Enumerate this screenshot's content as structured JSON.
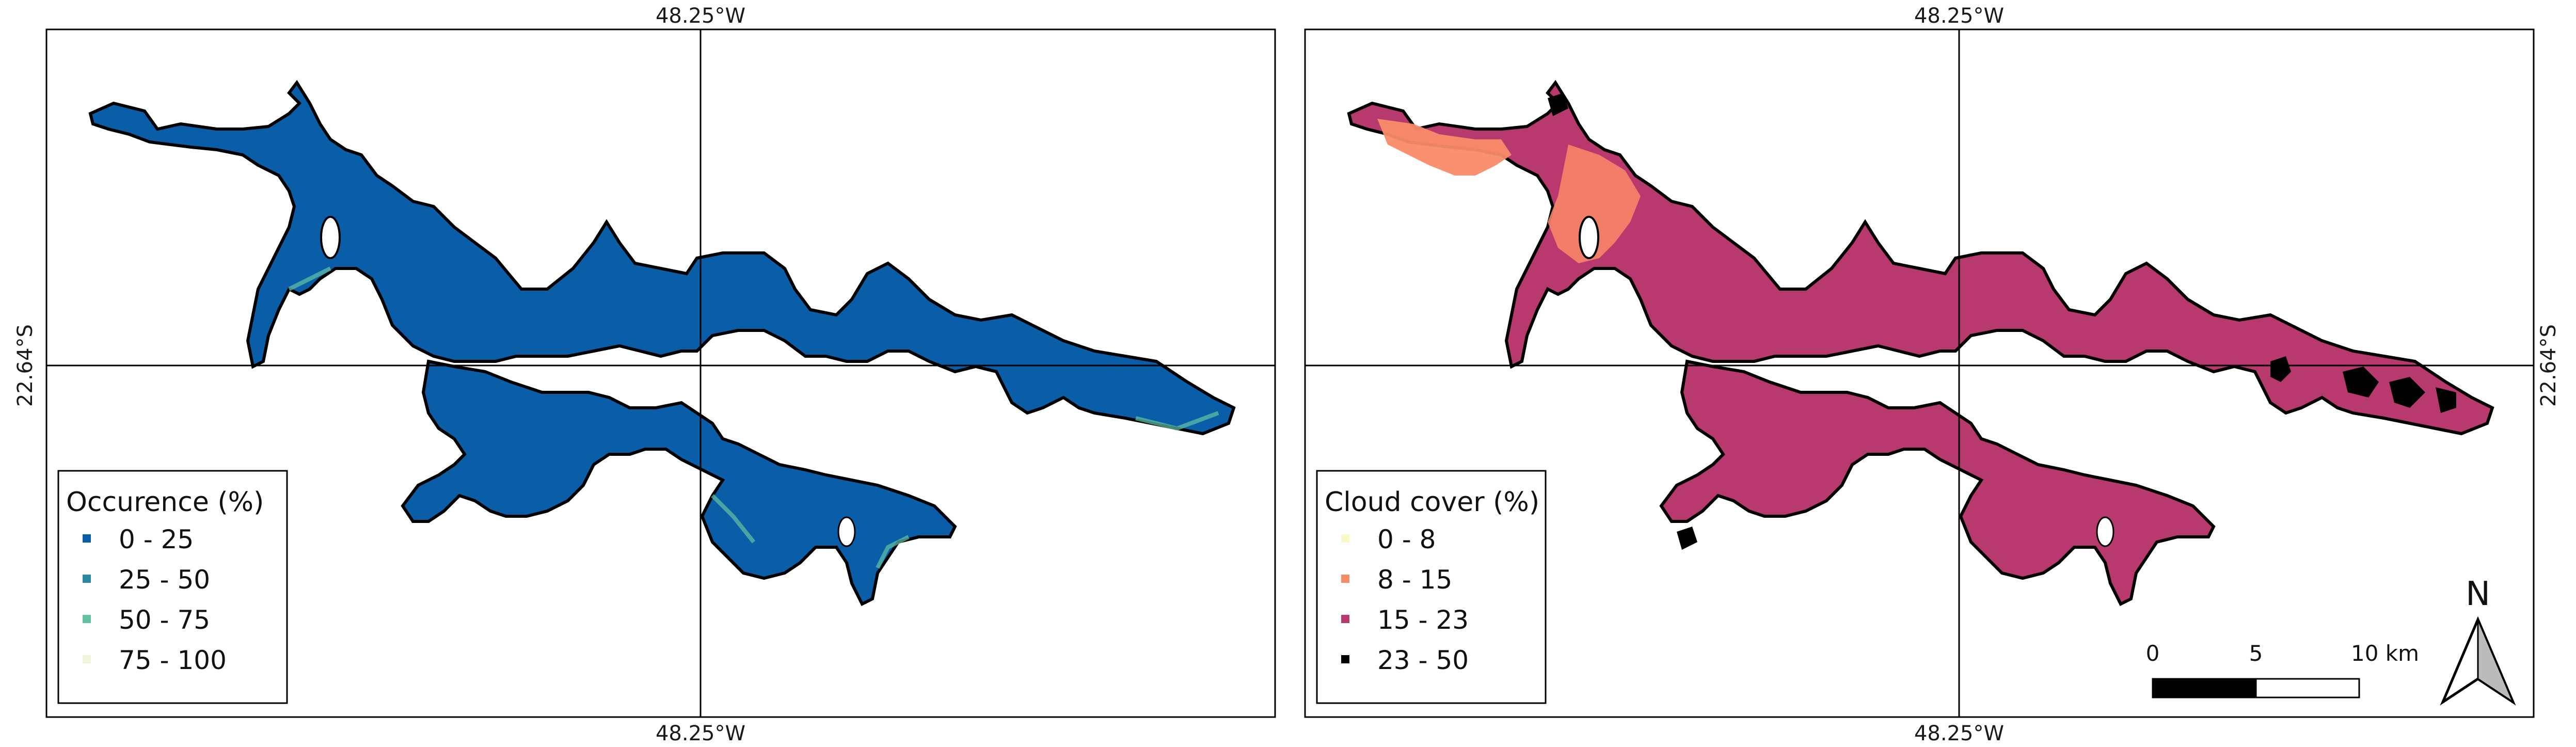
{
  "panels": [
    {
      "id": "occurrence",
      "coords": {
        "top": "48.25°W",
        "bottom": "48.25°W",
        "left": "22.64°S",
        "right": ""
      },
      "legend": {
        "title": "Occurence (%)",
        "items": [
          {
            "label": "0 - 25",
            "color": "#0a5ea8"
          },
          {
            "label": "25 - 50",
            "color": "#2a8aa0"
          },
          {
            "label": "50 - 75",
            "color": "#62c2a4"
          },
          {
            "label": "75 - 100",
            "color": "#f2f3dc"
          }
        ]
      },
      "water_color": "#0a5ea8",
      "rim_color": "#2a8aa0",
      "accent_color": "#62c2a4"
    },
    {
      "id": "cloud-cover",
      "coords": {
        "top": "48.25°W",
        "bottom": "48.25°W",
        "left": "",
        "right": "22.64°S"
      },
      "legend": {
        "title": "Cloud cover (%)",
        "items": [
          {
            "label": "0 - 8",
            "color": "#fbf8c8"
          },
          {
            "label": "8 - 15",
            "color": "#f98b68"
          },
          {
            "label": "15 - 23",
            "color": "#b8396e"
          },
          {
            "label": "23 - 50",
            "color": "#000000"
          }
        ]
      },
      "water_color": "#b8396e",
      "rim_color": "#c9507f",
      "accent_color": "#f98b68"
    }
  ],
  "scale_bar": {
    "labels": [
      "0",
      "5",
      "10 km"
    ]
  },
  "north_arrow": {
    "label": "N"
  }
}
